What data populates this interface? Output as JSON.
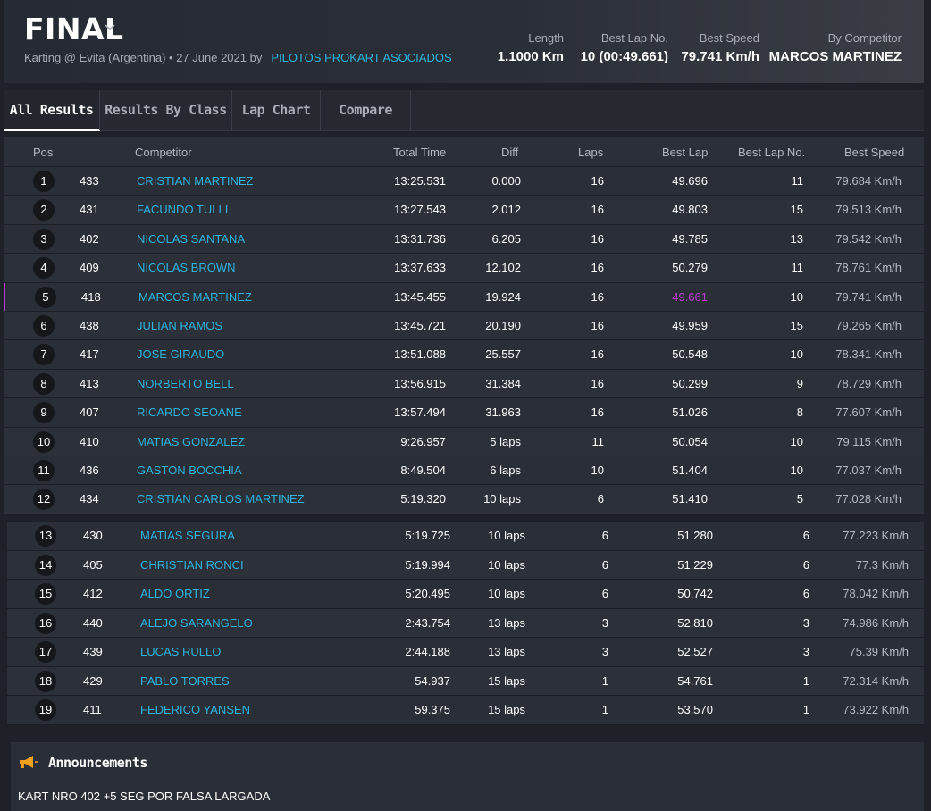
{
  "header": {
    "title": "FINAL",
    "subtitle": "Karting @ Evita (Argentina) • 27 June 2021 by",
    "organizer": "PILOTOS PROKART ASOCIADOS",
    "stats": {
      "length": {
        "label": "Length",
        "value": "1.1000 Km"
      },
      "best_lap_no": {
        "label": "Best Lap No.",
        "value": "10 (00:49.661)"
      },
      "best_speed": {
        "label": "Best Speed",
        "value": "79.741 Km/h"
      },
      "by_competitor": {
        "label": "By Competitor",
        "value": "MARCOS MARTINEZ"
      }
    }
  },
  "tabs": [
    "All Results",
    "Results By Class",
    "Lap Chart",
    "Compare"
  ],
  "columns": {
    "pos": "Pos",
    "competitor": "Competitor",
    "total_time": "Total Time",
    "diff": "Diff",
    "laps": "Laps",
    "best_lap": "Best Lap",
    "best_lap_no": "Best Lap No.",
    "best_speed": "Best Speed"
  },
  "results": [
    {
      "pos": "1",
      "no": "433",
      "name": "CRISTIAN MARTINEZ",
      "total": "13:25.531",
      "diff": "0.000",
      "laps": "16",
      "best": "49.696",
      "best_no": "11",
      "speed": "79.684 Km/h"
    },
    {
      "pos": "2",
      "no": "431",
      "name": "FACUNDO TULLI",
      "total": "13:27.543",
      "diff": "2.012",
      "laps": "16",
      "best": "49.803",
      "best_no": "15",
      "speed": "79.513 Km/h"
    },
    {
      "pos": "3",
      "no": "402",
      "name": "NICOLAS SANTANA",
      "total": "13:31.736",
      "diff": "6.205",
      "laps": "16",
      "best": "49.785",
      "best_no": "13",
      "speed": "79.542 Km/h"
    },
    {
      "pos": "4",
      "no": "409",
      "name": "NICOLAS BROWN",
      "total": "13:37.633",
      "diff": "12.102",
      "laps": "16",
      "best": "50.279",
      "best_no": "11",
      "speed": "78.761 Km/h"
    },
    {
      "pos": "5",
      "no": "418",
      "name": "MARCOS MARTINEZ",
      "total": "13:45.455",
      "diff": "19.924",
      "laps": "16",
      "best": "49.661",
      "best_no": "10",
      "speed": "79.741 Km/h"
    },
    {
      "pos": "6",
      "no": "438",
      "name": "JULIAN RAMOS",
      "total": "13:45.721",
      "diff": "20.190",
      "laps": "16",
      "best": "49.959",
      "best_no": "15",
      "speed": "79.265 Km/h"
    },
    {
      "pos": "7",
      "no": "417",
      "name": "JOSE GIRAUDO",
      "total": "13:51.088",
      "diff": "25.557",
      "laps": "16",
      "best": "50.548",
      "best_no": "10",
      "speed": "78.341 Km/h"
    },
    {
      "pos": "8",
      "no": "413",
      "name": "NORBERTO BELL",
      "total": "13:56.915",
      "diff": "31.384",
      "laps": "16",
      "best": "50.299",
      "best_no": "9",
      "speed": "78.729 Km/h"
    },
    {
      "pos": "9",
      "no": "407",
      "name": "RICARDO SEOANE",
      "total": "13:57.494",
      "diff": "31.963",
      "laps": "16",
      "best": "51.026",
      "best_no": "8",
      "speed": "77.607 Km/h"
    },
    {
      "pos": "10",
      "no": "410",
      "name": "MATIAS GONZALEZ",
      "total": "9:26.957",
      "diff": "5 laps",
      "laps": "11",
      "best": "50.054",
      "best_no": "10",
      "speed": "79.115 Km/h"
    },
    {
      "pos": "11",
      "no": "436",
      "name": "GASTON BOCCHIA",
      "total": "8:49.504",
      "diff": "6 laps",
      "laps": "10",
      "best": "51.404",
      "best_no": "10",
      "speed": "77.037 Km/h"
    },
    {
      "pos": "12",
      "no": "434",
      "name": "CRISTIAN CARLOS MARTINEZ",
      "total": "5:19.320",
      "diff": "10 laps",
      "laps": "6",
      "best": "51.410",
      "best_no": "5",
      "speed": "77.028 Km/h"
    },
    {
      "pos": "13",
      "no": "430",
      "name": "MATIAS SEGURA",
      "total": "5:19.725",
      "diff": "10 laps",
      "laps": "6",
      "best": "51.280",
      "best_no": "6",
      "speed": "77.223 Km/h"
    },
    {
      "pos": "14",
      "no": "405",
      "name": "CHRISTIAN RONCI",
      "total": "5:19.994",
      "diff": "10 laps",
      "laps": "6",
      "best": "51.229",
      "best_no": "6",
      "speed": "77.3 Km/h"
    },
    {
      "pos": "15",
      "no": "412",
      "name": "ALDO ORTIZ",
      "total": "5:20.495",
      "diff": "10 laps",
      "laps": "6",
      "best": "50.742",
      "best_no": "6",
      "speed": "78.042 Km/h"
    },
    {
      "pos": "16",
      "no": "440",
      "name": "ALEJO SARANGELO",
      "total": "2:43.754",
      "diff": "13 laps",
      "laps": "3",
      "best": "52.810",
      "best_no": "3",
      "speed": "74.986 Km/h"
    },
    {
      "pos": "17",
      "no": "439",
      "name": "LUCAS RULLO",
      "total": "2:44.188",
      "diff": "13 laps",
      "laps": "3",
      "best": "52.527",
      "best_no": "3",
      "speed": "75.39 Km/h"
    },
    {
      "pos": "18",
      "no": "429",
      "name": "PABLO TORRES",
      "total": "54.937",
      "diff": "15 laps",
      "laps": "1",
      "best": "54.761",
      "best_no": "1",
      "speed": "72.314 Km/h"
    },
    {
      "pos": "19",
      "no": "411",
      "name": "FEDERICO YANSEN",
      "total": "59.375",
      "diff": "15 laps",
      "laps": "1",
      "best": "53.570",
      "best_no": "1",
      "speed": "73.922 Km/h"
    }
  ],
  "highlight_color": "#c03ad9",
  "accent_color": "#2bb5e0",
  "announcements": {
    "title": "Announcements",
    "icon": "megaphone-icon",
    "text": "KART NRO 402 +5 SEG POR FALSA LARGADA"
  }
}
